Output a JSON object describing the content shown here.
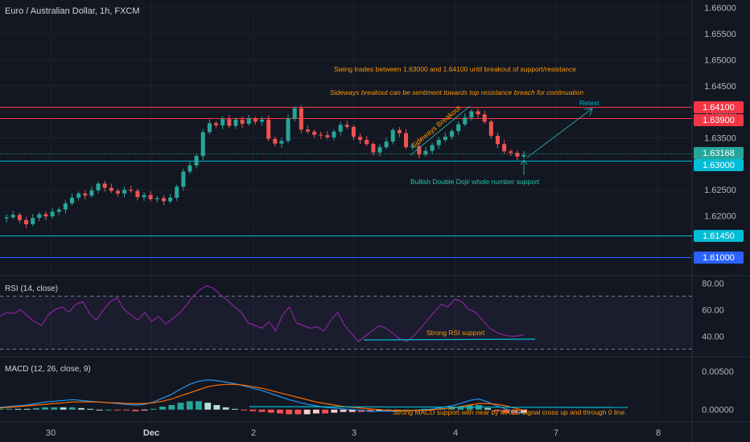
{
  "title": "Euro / Australian Dollar, 1h, FXCM",
  "colors": {
    "background": "#131722",
    "up": "#26a69a",
    "down": "#ef5350",
    "grid": "#1e222d",
    "axis_text": "#b2b5be",
    "red_line": "#f23645",
    "cyan_line": "#00bcd4",
    "blue_line": "#2962ff",
    "orange_text": "#ff9800",
    "green_text": "#26c6a9",
    "rsi_line": "#9c27b0",
    "macd_line": "#2196f3",
    "signal_line": "#ff6d00"
  },
  "annotations": {
    "swing": "Swing trades between 1.63000 and 1.64100 until breakout of support/resistance",
    "sideways_bias": "Sideways breakout can be sentiment towards top resistance breach for continuation",
    "sideways_breakout": "Sideways Breakout",
    "retest": "Retest",
    "double_doji": "Bullish Double Doji/ whole number support",
    "rsi_support": "Strong RSI support",
    "macd_support": "Strong MACD support with near by MACD signal cross up and through 0 line."
  },
  "price_badges": {
    "r1": "1.64100",
    "r2": "1.63900",
    "last": "1.63168",
    "s1": "1.63000",
    "s2": "1.61450",
    "s3": "1.61000"
  },
  "x_labels": [
    "30",
    "Dec",
    "2",
    "3",
    "4",
    "7",
    "8"
  ],
  "rsi_title": "RSI (14, close)",
  "macd_title": "MACD (12, 26, close, 9)",
  "chart_data": {
    "type": "candlestick",
    "title": "Euro / Australian Dollar, 1h, FXCM",
    "ylim": [
      1.6085,
      1.6615
    ],
    "y_ticks": [
      1.66,
      1.655,
      1.65,
      1.645,
      1.64,
      1.635,
      1.63,
      1.625,
      1.62
    ],
    "y_tick_labels": [
      "1.66000",
      "1.65500",
      "1.65000",
      "1.64500",
      "1.64000",
      "1.63500",
      "1.63000",
      "1.62500",
      "1.62000"
    ],
    "levels": [
      1.641,
      1.639,
      1.63,
      1.6145,
      1.61
    ],
    "last_price": 1.63168,
    "close_path": [
      1.6195,
      1.6197,
      1.6202,
      1.6192,
      1.6184,
      1.6196,
      1.6203,
      1.6199,
      1.6208,
      1.6212,
      1.6224,
      1.6235,
      1.6243,
      1.6239,
      1.6249,
      1.6262,
      1.6254,
      1.6248,
      1.6243,
      1.625,
      1.6248,
      1.6236,
      1.624,
      1.6232,
      1.6234,
      1.6228,
      1.6235,
      1.6256,
      1.6285,
      1.6297,
      1.6315,
      1.6361,
      1.6378,
      1.6374,
      1.6386,
      1.6373,
      1.6385,
      1.6377,
      1.6387,
      1.6381,
      1.6385,
      1.6348,
      1.6339,
      1.6344,
      1.6387,
      1.6407,
      1.6366,
      1.6362,
      1.6356,
      1.6355,
      1.6351,
      1.6362,
      1.6375,
      1.6371,
      1.6352,
      1.6346,
      1.6338,
      1.6322,
      1.6332,
      1.6343,
      1.6365,
      1.6359,
      1.6332,
      1.6334,
      1.6318,
      1.6325,
      1.6336,
      1.6346,
      1.6352,
      1.6363,
      1.6376,
      1.6389,
      1.6401,
      1.6395,
      1.6381,
      1.6354,
      1.6338,
      1.6324,
      1.6321,
      1.6314,
      1.6317
    ],
    "rsi": {
      "ylim": [
        25,
        85
      ],
      "y_ticks": [
        80,
        60,
        40
      ],
      "y_tick_labels": [
        "80.00",
        "60.00",
        "40.00"
      ],
      "bands": [
        70,
        30
      ],
      "values": [
        55,
        58,
        57,
        60,
        55,
        51,
        48,
        56,
        60,
        62,
        58,
        64,
        66,
        57,
        52,
        60,
        66,
        69,
        60,
        56,
        52,
        58,
        51,
        55,
        49,
        53,
        57,
        63,
        70,
        75,
        78,
        76,
        71,
        67,
        62,
        58,
        50,
        48,
        46,
        51,
        44,
        56,
        62,
        50,
        48,
        46,
        47,
        44,
        52,
        58,
        48,
        42,
        36,
        40,
        44,
        48,
        46,
        42,
        38,
        36,
        40,
        46,
        52,
        58,
        64,
        62,
        68,
        66,
        60,
        58,
        52,
        46,
        43,
        41,
        40,
        40,
        41
      ]
    },
    "macd": {
      "ylim": [
        -0.0015,
        0.0068
      ],
      "y_ticks": [
        0.005,
        0.0
      ],
      "y_tick_labels": [
        "0.00500",
        "0.00000"
      ],
      "macd_values": [
        0.0003,
        0.0004,
        0.0005,
        0.0006,
        0.0008,
        0.001,
        0.0011,
        0.0012,
        0.0013,
        0.0012,
        0.0011,
        0.001,
        0.0009,
        0.0008,
        0.0007,
        0.0006,
        0.0007,
        0.001,
        0.0015,
        0.002,
        0.0027,
        0.0033,
        0.0037,
        0.0039,
        0.0038,
        0.0036,
        0.0034,
        0.0031,
        0.0028,
        0.0025,
        0.0021,
        0.0017,
        0.0013,
        0.001,
        0.0007,
        0.0005,
        0.0003,
        0.0002,
        0.0001,
        0.0,
        -0.0001,
        -0.0002,
        -0.0002,
        -0.0002,
        -0.0002,
        -0.0001,
        -0.0001,
        0.0,
        0.0001,
        0.0003,
        0.0005,
        0.0008,
        0.0012,
        0.0014,
        0.001,
        0.0005,
        0.0001,
        -0.0003,
        -0.0005
      ],
      "signal_values": [
        0.0002,
        0.0003,
        0.0004,
        0.0005,
        0.0006,
        0.0007,
        0.0008,
        0.0009,
        0.001,
        0.001,
        0.001,
        0.001,
        0.0009,
        0.0009,
        0.0008,
        0.0008,
        0.0008,
        0.0009,
        0.0011,
        0.0014,
        0.0018,
        0.0022,
        0.0026,
        0.003,
        0.0032,
        0.0033,
        0.0033,
        0.0032,
        0.003,
        0.0028,
        0.0025,
        0.0022,
        0.0019,
        0.0016,
        0.0013,
        0.001,
        0.0008,
        0.0006,
        0.0004,
        0.0003,
        0.0002,
        0.0001,
        0.0,
        -0.0001,
        -0.0001,
        -0.0001,
        -0.0001,
        -0.0001,
        0.0,
        0.0001,
        0.0002,
        0.0004,
        0.0006,
        0.0008,
        0.0008,
        0.0007,
        0.0005,
        0.0002,
        -0.0001
      ]
    }
  }
}
